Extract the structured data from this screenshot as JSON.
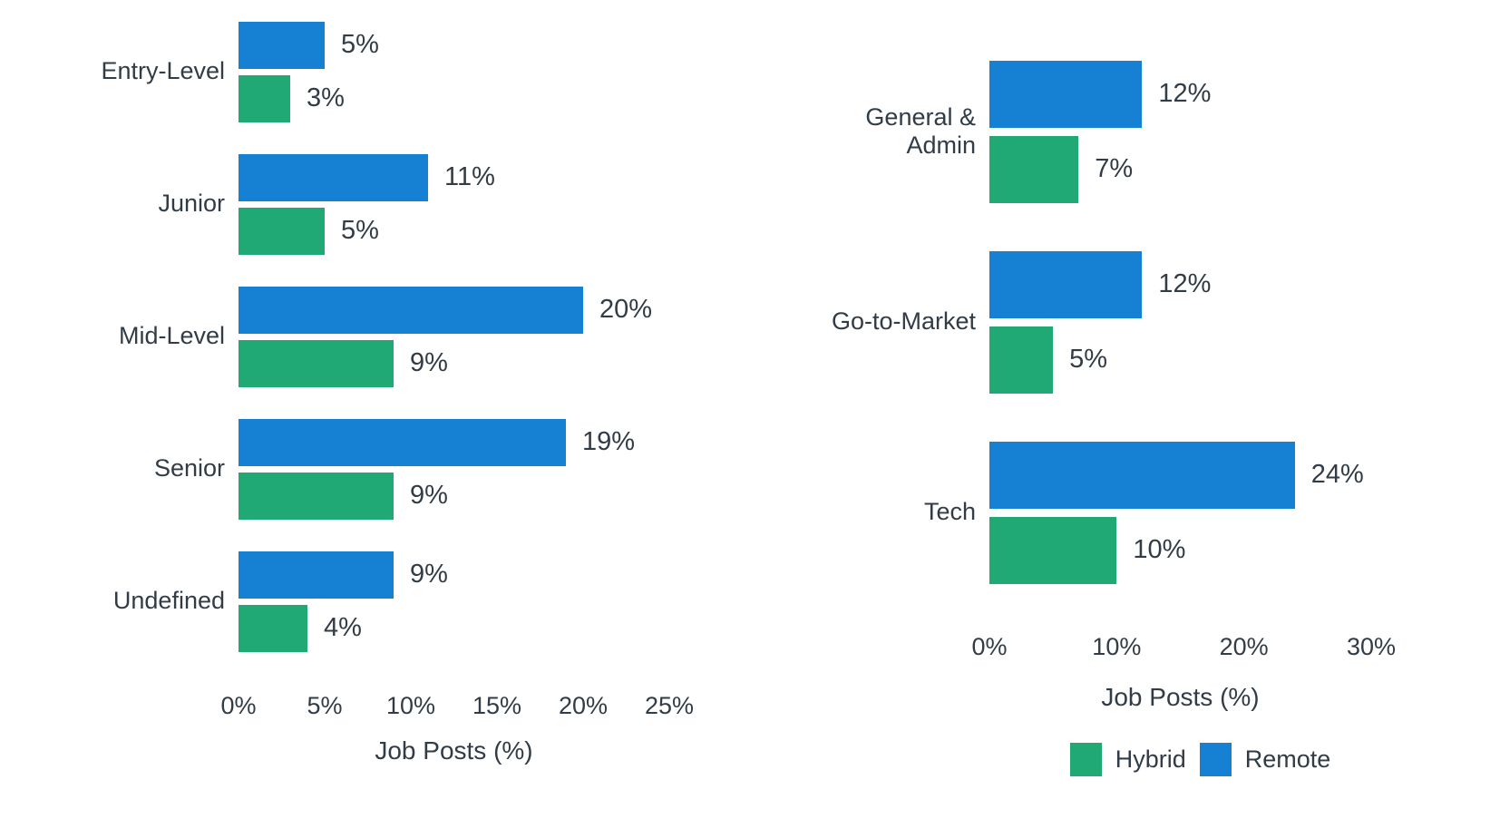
{
  "colors": {
    "remote": "#1680d2",
    "hybrid": "#21a975",
    "text": "#323c46",
    "background": "#ffffff"
  },
  "chart_data": [
    {
      "type": "bar",
      "orientation": "horizontal",
      "title": "",
      "categories": [
        "Entry-Level",
        "Junior",
        "Mid-Level",
        "Senior",
        "Undefined"
      ],
      "series": [
        {
          "name": "Remote",
          "color": "#1680d2",
          "values": [
            5,
            11,
            20,
            19,
            9
          ]
        },
        {
          "name": "Hybrid",
          "color": "#21a975",
          "values": [
            3,
            5,
            9,
            9,
            4
          ]
        }
      ],
      "value_suffix": "%",
      "xlabel": "Job Posts (%)",
      "xlim": [
        0,
        25
      ],
      "xticks": [
        "0%",
        "5%",
        "10%",
        "15%",
        "20%",
        "25%"
      ],
      "grid": false,
      "legend": null
    },
    {
      "type": "bar",
      "orientation": "horizontal",
      "title": "",
      "categories": [
        "General & Admin",
        "Go-to-Market",
        "Tech"
      ],
      "series": [
        {
          "name": "Remote",
          "color": "#1680d2",
          "values": [
            12,
            12,
            24
          ]
        },
        {
          "name": "Hybrid",
          "color": "#21a975",
          "values": [
            7,
            5,
            10
          ]
        }
      ],
      "value_suffix": "%",
      "xlabel": "Job Posts (%)",
      "xlim": [
        0,
        30
      ],
      "xticks": [
        "0%",
        "10%",
        "20%",
        "30%"
      ],
      "grid": false,
      "legend": [
        "Hybrid",
        "Remote"
      ],
      "legend_position": "bottom"
    }
  ]
}
